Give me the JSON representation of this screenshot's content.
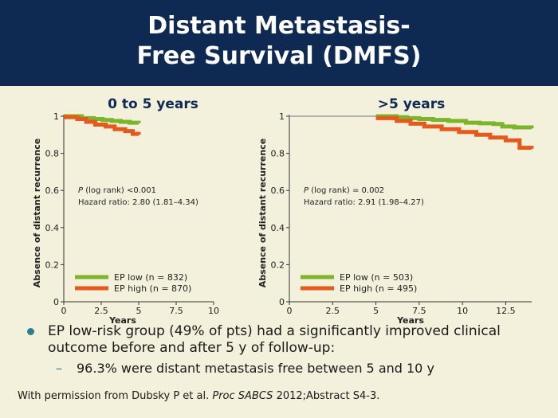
{
  "slide": {
    "title_line1": "Distant Metastasis-",
    "title_line2": "Free Survival (DMFS)"
  },
  "bullets": {
    "main": "EP low-risk group (49% of pts) had a significantly improved clinical outcome before and after 5 y of follow-up:",
    "sub": "96.3% were distant metastasis free between 5 and 10 y"
  },
  "footer": {
    "prefix": "With permission from Dubsky P et al. ",
    "journal": "Proc SABCS",
    "suffix": " 2012;Abstract S4-3."
  },
  "colors": {
    "ep_low": "#7db52a",
    "ep_high": "#e55a1c",
    "early": "#b0b0b0",
    "title_text": "#0e2a52",
    "header_bg": "#0e2a52"
  },
  "chart_data": [
    {
      "type": "line",
      "title": "0 to 5 years",
      "xlabel": "Years",
      "ylabel": "Absence of distant recurrence",
      "xlim": [
        0,
        10
      ],
      "ylim": [
        0,
        1
      ],
      "xticks": [
        0,
        2.5,
        5,
        7.5,
        10
      ],
      "xtick_labels": [
        "0",
        "2.5",
        "5",
        "7.5",
        "10"
      ],
      "yticks": [
        0,
        0.2,
        0.4,
        0.6,
        0.8,
        1
      ],
      "ytick_labels": [
        "0",
        "0.2",
        "0.4",
        "0.6",
        "0.8",
        "1"
      ],
      "p_italic": "P",
      "p_text": " (log rank) <0.001",
      "hazard_text": "Hazard ratio: 2.80 (1.81–4.34)",
      "legend": "bottom-left",
      "series": [
        {
          "name": "EP low (n = 832)",
          "color": "#7db52a",
          "x": [
            0,
            0.8,
            1.2,
            2.0,
            2.6,
            3.2,
            3.8,
            4.4,
            5.0
          ],
          "y": [
            1.0,
            1.0,
            0.99,
            0.985,
            0.98,
            0.975,
            0.97,
            0.965,
            0.962
          ]
        },
        {
          "name": "EP high (n = 870)",
          "color": "#e55a1c",
          "x": [
            0,
            0.9,
            1.5,
            2.1,
            2.8,
            3.4,
            4.1,
            4.6,
            5.0
          ],
          "y": [
            0.995,
            0.985,
            0.97,
            0.955,
            0.945,
            0.93,
            0.92,
            0.905,
            0.9
          ]
        }
      ]
    },
    {
      "type": "line",
      "title": ">5 years",
      "xlabel": "Years",
      "ylabel": "Absence of distant recurrence",
      "xlim": [
        0,
        14
      ],
      "ylim": [
        0,
        1
      ],
      "xticks": [
        0,
        2.5,
        5,
        7.5,
        10,
        12.5
      ],
      "xtick_labels": [
        "0",
        "2.5",
        "5",
        "7.5",
        "10",
        "12.5"
      ],
      "yticks": [
        0,
        0.2,
        0.4,
        0.6,
        0.8,
        1
      ],
      "ytick_labels": [
        "0",
        "0.2",
        "0.4",
        "0.6",
        "0.8",
        "1"
      ],
      "p_italic": "P",
      "p_text": " (log rank) = 0.002",
      "hazard_text": "Hazard ratio: 2.91 (1.98–4.27)",
      "legend": "bottom-left",
      "early_period": {
        "x": [
          0,
          5
        ],
        "y": 1.0
      },
      "series": [
        {
          "name": "EP low (n = 503)",
          "color": "#7db52a",
          "x": [
            5,
            6.2,
            6.8,
            7.5,
            8.3,
            9.2,
            10.2,
            11.0,
            11.8,
            12.3,
            13.0,
            14.0
          ],
          "y": [
            1.0,
            0.995,
            0.99,
            0.985,
            0.98,
            0.975,
            0.965,
            0.962,
            0.958,
            0.945,
            0.94,
            0.935
          ]
        },
        {
          "name": "EP high (n = 495)",
          "color": "#e55a1c",
          "x": [
            5,
            6.2,
            7.0,
            7.8,
            8.8,
            9.8,
            10.8,
            11.6,
            12.5,
            13.3,
            14.0
          ],
          "y": [
            0.99,
            0.975,
            0.96,
            0.945,
            0.93,
            0.915,
            0.9,
            0.885,
            0.87,
            0.83,
            0.825
          ]
        }
      ]
    }
  ]
}
